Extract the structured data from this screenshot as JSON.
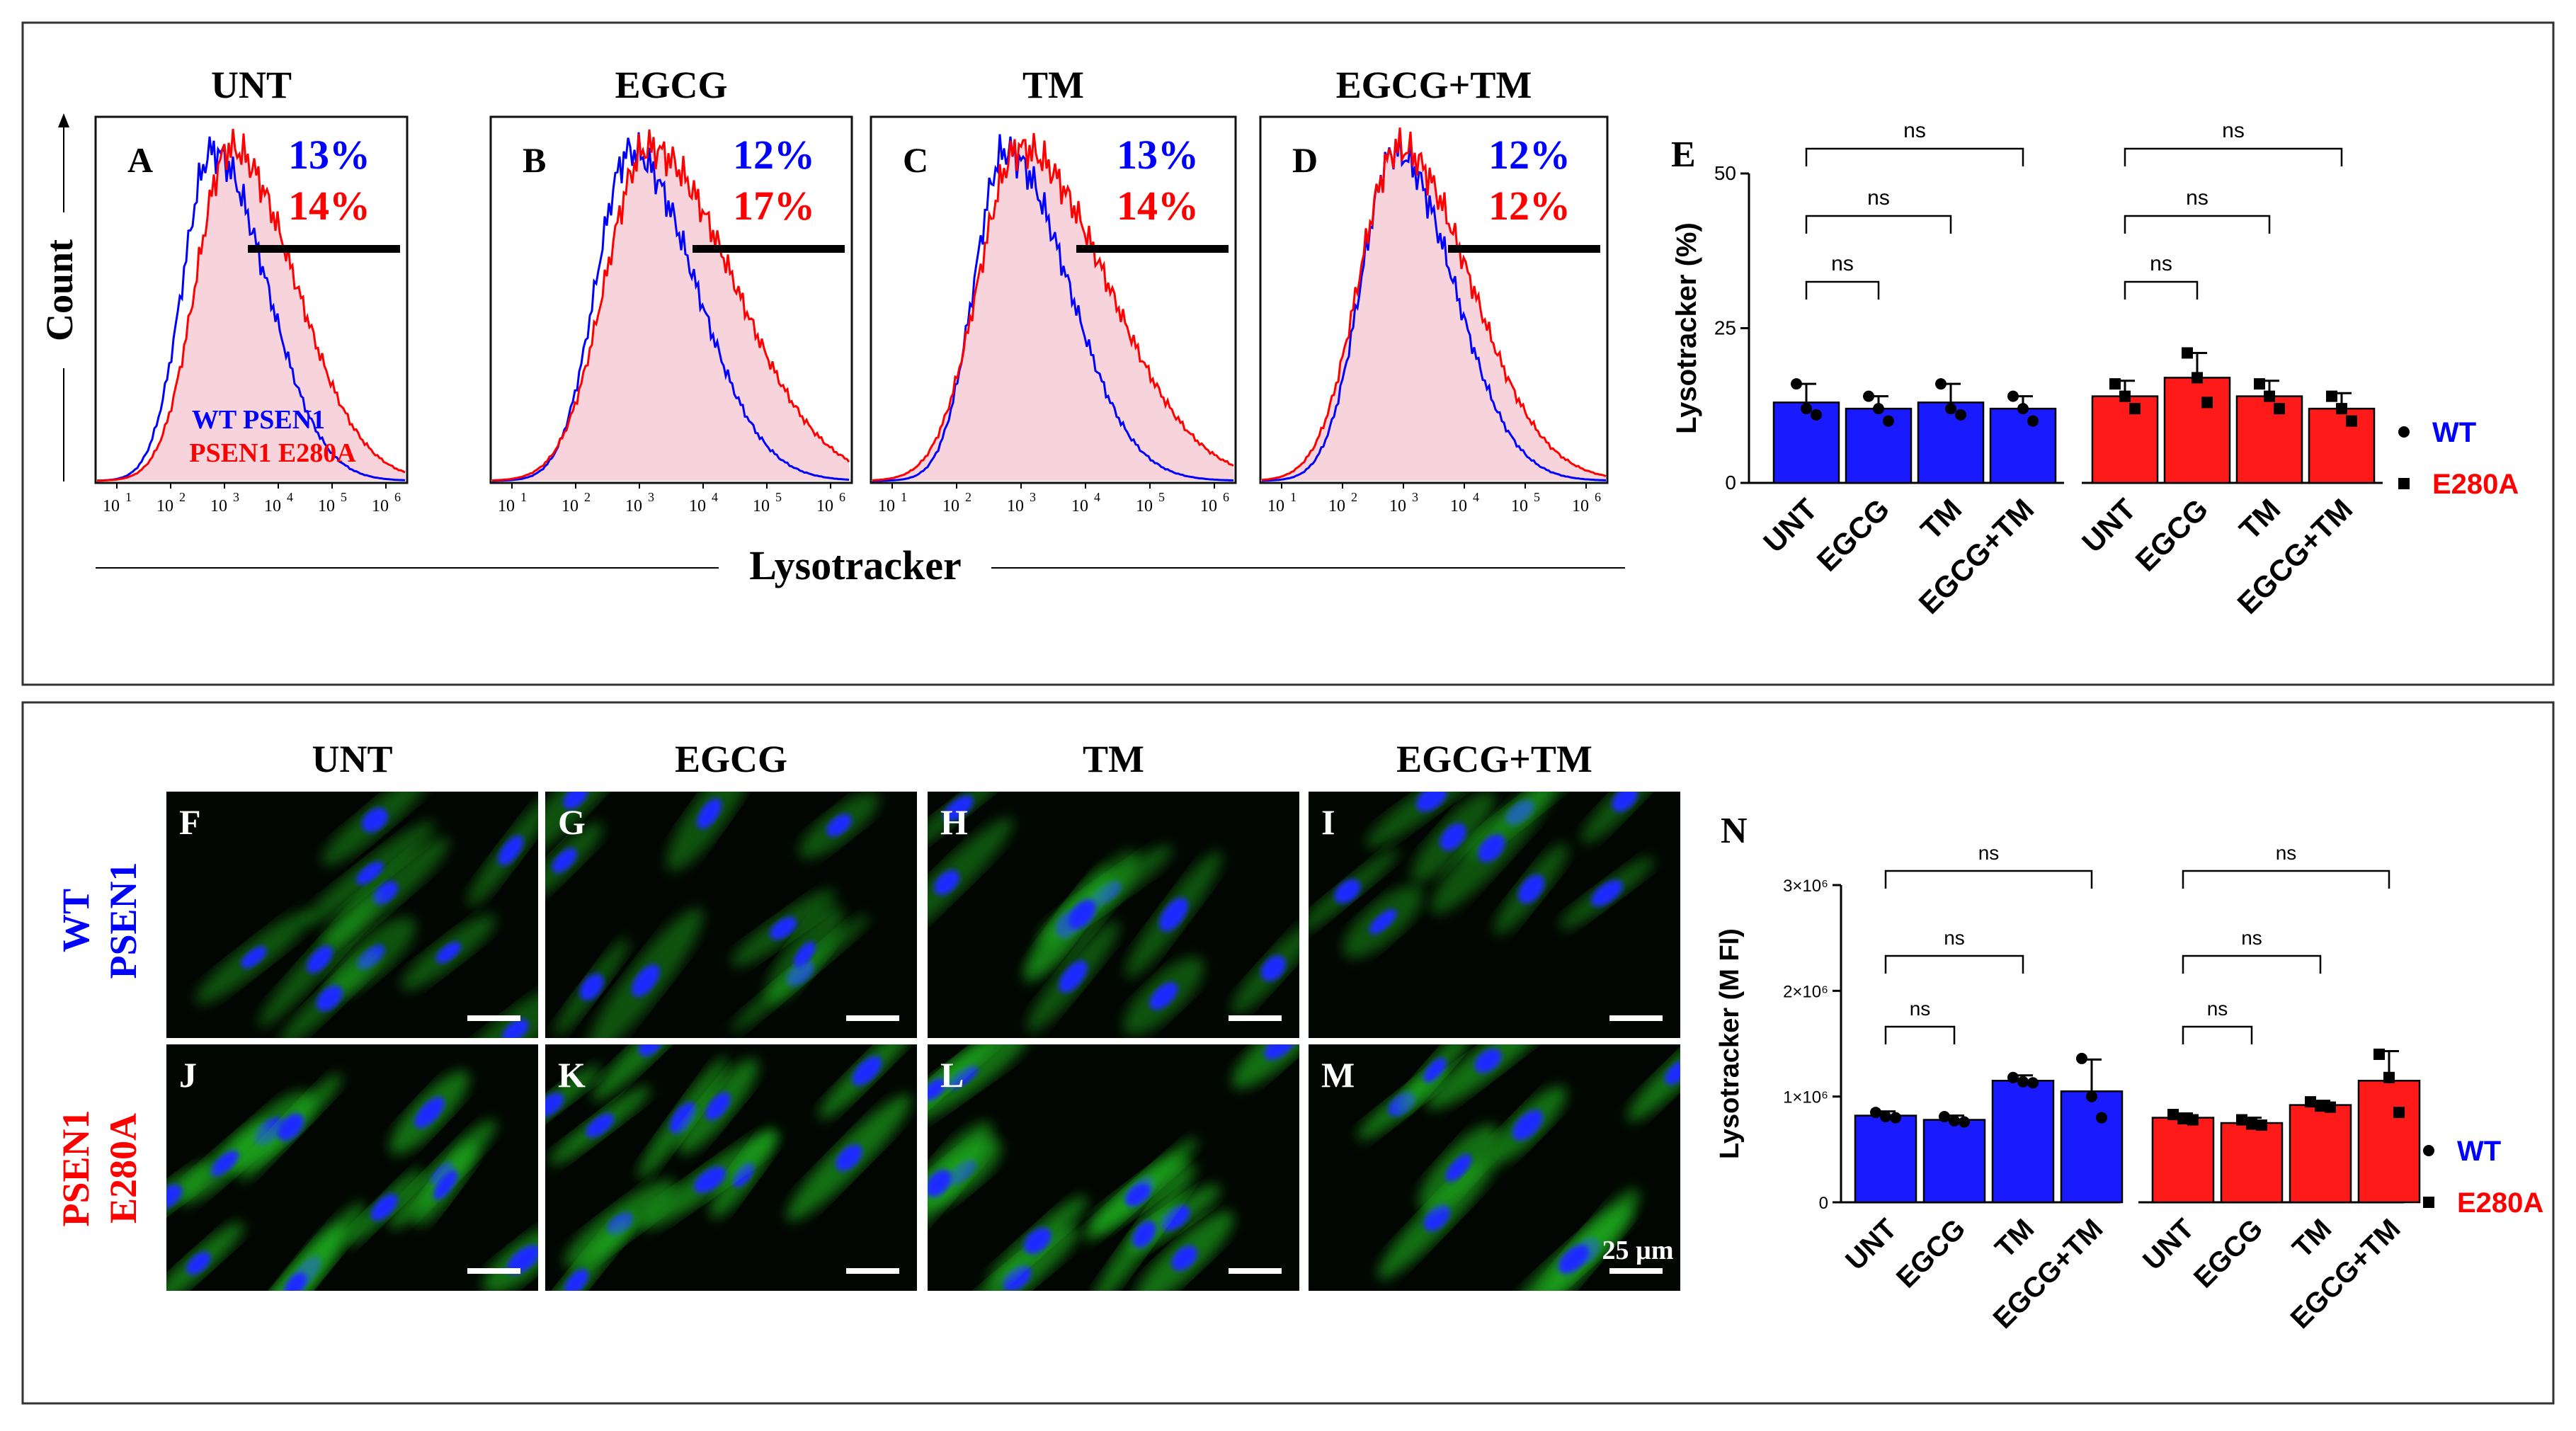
{
  "colors": {
    "wt": "#0000ff",
    "e280a": "#ff0000",
    "fill": "#f7d3dc",
    "bar_blue": "#1a1aff",
    "bar_red": "#ff1a1a",
    "nucleus": "#1d2cff",
    "lyso": "#23c423"
  },
  "top": {
    "count_label": "Count",
    "lysotracker_label": "Lysotracker",
    "panels": [
      {
        "letter": "A",
        "title": "UNT",
        "pct_wt": "13%",
        "pct_e280a": "14%",
        "legend_wt": "WT   PSEN1",
        "legend_e280a": "PSEN1 E280A"
      },
      {
        "letter": "B",
        "title": "EGCG",
        "pct_wt": "12%",
        "pct_e280a": "17%"
      },
      {
        "letter": "C",
        "title": "TM",
        "pct_wt": "13%",
        "pct_e280a": "14%"
      },
      {
        "letter": "D",
        "title": "EGCG+TM",
        "pct_wt": "12%",
        "pct_e280a": "12%"
      }
    ],
    "x_ticks": [
      "10",
      "10",
      "10",
      "10",
      "10",
      "10"
    ],
    "x_tick_exps": [
      "1",
      "2",
      "3",
      "4",
      "5",
      "6"
    ]
  },
  "bottom": {
    "col_titles": [
      "UNT",
      "EGCG",
      "TM",
      "EGCG+TM"
    ],
    "row_wt": [
      "WT",
      "PSEN1"
    ],
    "row_e280a": [
      "PSEN1",
      "E280A"
    ],
    "letters_wt": [
      "F",
      "G",
      "H",
      "I"
    ],
    "letters_e280a": [
      "J",
      "K",
      "L",
      "M"
    ],
    "scale_label": "25 µm"
  },
  "chart_data": [
    {
      "type": "bar",
      "panel": "E",
      "ylabel": "Lysotracker (%)",
      "ylim": [
        0,
        50
      ],
      "y_ticks": [
        "0",
        "25",
        "50"
      ],
      "categories": [
        "UNT",
        "EGCG",
        "TM",
        "EGCG+TM"
      ],
      "series": [
        {
          "name": "WT",
          "values": [
            13,
            12,
            13,
            12
          ],
          "err": [
            3,
            2,
            3,
            2
          ],
          "points": [
            [
              16,
              12,
              11
            ],
            [
              14,
              12,
              10
            ],
            [
              16,
              12,
              11
            ],
            [
              14,
              12,
              10
            ]
          ]
        },
        {
          "name": "E280A",
          "values": [
            14,
            17,
            14,
            12
          ],
          "err": [
            2.5,
            4,
            2.5,
            2.5
          ],
          "points": [
            [
              16,
              14,
              12
            ],
            [
              21,
              17,
              13
            ],
            [
              16,
              14,
              12
            ],
            [
              14,
              12,
              10
            ]
          ]
        }
      ],
      "significance": [
        "ns",
        "ns",
        "ns",
        "ns",
        "ns",
        "ns"
      ],
      "legend_position": "right"
    },
    {
      "type": "bar",
      "panel": "N",
      "ylabel": "Lysotracker (M FI)",
      "ylim": [
        0,
        3000000
      ],
      "y_ticks": [
        "0",
        "1×10⁶",
        "2×10⁶",
        "3×10⁶"
      ],
      "categories": [
        "UNT",
        "EGCG",
        "TM",
        "EGCG+TM"
      ],
      "series": [
        {
          "name": "WT",
          "values": [
            820000,
            780000,
            1150000,
            1050000
          ],
          "err": [
            40000,
            40000,
            50000,
            300000
          ],
          "points": [
            [
              850000,
              810000,
              800000
            ],
            [
              810000,
              770000,
              760000
            ],
            [
              1180000,
              1140000,
              1130000
            ],
            [
              1360000,
              1000000,
              800000
            ]
          ]
        },
        {
          "name": "E280A",
          "values": [
            800000,
            750000,
            920000,
            1150000
          ],
          "err": [
            40000,
            50000,
            40000,
            280000
          ],
          "points": [
            [
              830000,
              790000,
              780000
            ],
            [
              780000,
              740000,
              730000
            ],
            [
              950000,
              910000,
              900000
            ],
            [
              1400000,
              1180000,
              850000
            ]
          ]
        }
      ],
      "significance": [
        "ns",
        "ns",
        "ns",
        "ns",
        "ns",
        "ns"
      ],
      "legend_position": "right"
    }
  ]
}
